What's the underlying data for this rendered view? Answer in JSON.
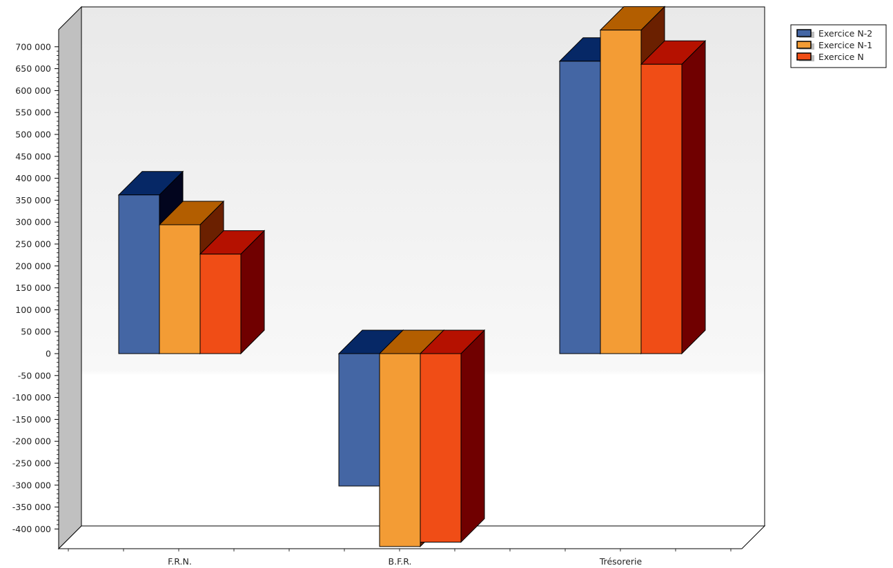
{
  "chart_data": {
    "type": "bar",
    "categories": [
      "F.R.N.",
      "B.F.R.",
      "Trésorerie"
    ],
    "series": [
      {
        "name": "Exercice N-2",
        "values": [
          362000,
          -302000,
          667000
        ]
      },
      {
        "name": "Exercice N-1",
        "values": [
          294000,
          -440000,
          738000
        ]
      },
      {
        "name": "Exercice N",
        "values": [
          227000,
          -430000,
          660000
        ]
      }
    ],
    "title": "",
    "xlabel": "",
    "ylabel": "",
    "ylim": [
      -440000,
      700000
    ],
    "yticks": [
      700000,
      650000,
      600000,
      550000,
      500000,
      450000,
      400000,
      350000,
      300000,
      250000,
      200000,
      150000,
      100000,
      50000,
      0,
      -50000,
      -100000,
      -150000,
      -200000,
      -250000,
      -300000,
      -350000,
      -400000
    ],
    "ytick_labels": [
      "700 000",
      "650 000",
      "600 000",
      "550 000",
      "500 000",
      "450 000",
      "400 000",
      "350 000",
      "300 000",
      "250 000",
      "200 000",
      "150 000",
      "100 000",
      "50 000",
      "0",
      "-50 000",
      "-100 000",
      "-150 000",
      "-200 000",
      "-250 000",
      "-300 000",
      "-350 000",
      "-400 000"
    ],
    "grid": false,
    "three_d": true,
    "legend_position": "top-right",
    "colors": {
      "front": [
        "#4466a4",
        "#f39c35",
        "#f04d16"
      ],
      "top": [
        "#062866",
        "#b35e00",
        "#b51100"
      ],
      "side": [
        "#02051e",
        "#6b2000",
        "#700000"
      ],
      "left_wall": "#c0c0c0",
      "back_wall_top": "#e9e9e9",
      "back_wall_bottom": "#ffffff"
    }
  }
}
